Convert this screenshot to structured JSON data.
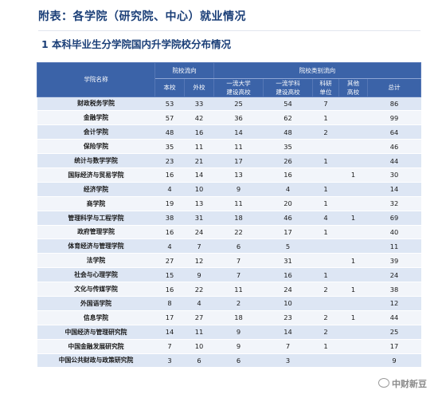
{
  "title": "附表：各学院（研究院、中心）就业情况",
  "section_title": "1  本科毕业生分学院国内升学院校分布情况",
  "table": {
    "header_name": "学院名称",
    "group1": "院校流向",
    "group2": "院校类别流向",
    "col_benxiao": "本校",
    "col_waixiao": "外校",
    "col_yiliu_daxue_1": "一流大学",
    "col_yiliu_daxue_2": "建设高校",
    "col_yiliu_xueke_1": "一流学科",
    "col_yiliu_xueke_2": "建设高校",
    "col_keyan_1": "科研",
    "col_keyan_2": "单位",
    "col_qita_1": "其他",
    "col_qita_2": "高校",
    "col_total": "总计",
    "rows": [
      {
        "name": "财政税务学院",
        "benxiao": "53",
        "waixiao": "33",
        "daxue": "25",
        "xueke": "54",
        "keyan": "7",
        "qita": "",
        "total": "86"
      },
      {
        "name": "金融学院",
        "benxiao": "57",
        "waixiao": "42",
        "daxue": "36",
        "xueke": "62",
        "keyan": "1",
        "qita": "",
        "total": "99"
      },
      {
        "name": "会计学院",
        "benxiao": "48",
        "waixiao": "16",
        "daxue": "14",
        "xueke": "48",
        "keyan": "2",
        "qita": "",
        "total": "64"
      },
      {
        "name": "保险学院",
        "benxiao": "35",
        "waixiao": "11",
        "daxue": "11",
        "xueke": "35",
        "keyan": "",
        "qita": "",
        "total": "46"
      },
      {
        "name": "统计与数学学院",
        "benxiao": "23",
        "waixiao": "21",
        "daxue": "17",
        "xueke": "26",
        "keyan": "1",
        "qita": "",
        "total": "44"
      },
      {
        "name": "国际经济与贸易学院",
        "benxiao": "16",
        "waixiao": "14",
        "daxue": "13",
        "xueke": "16",
        "keyan": "",
        "qita": "1",
        "total": "30"
      },
      {
        "name": "经济学院",
        "benxiao": "4",
        "waixiao": "10",
        "daxue": "9",
        "xueke": "4",
        "keyan": "1",
        "qita": "",
        "total": "14"
      },
      {
        "name": "商学院",
        "benxiao": "19",
        "waixiao": "13",
        "daxue": "11",
        "xueke": "20",
        "keyan": "1",
        "qita": "",
        "total": "32"
      },
      {
        "name": "管理科学与工程学院",
        "benxiao": "38",
        "waixiao": "31",
        "daxue": "18",
        "xueke": "46",
        "keyan": "4",
        "qita": "1",
        "total": "69"
      },
      {
        "name": "政府管理学院",
        "benxiao": "16",
        "waixiao": "24",
        "daxue": "22",
        "xueke": "17",
        "keyan": "1",
        "qita": "",
        "total": "40"
      },
      {
        "name": "体育经济与管理学院",
        "benxiao": "4",
        "waixiao": "7",
        "daxue": "6",
        "xueke": "5",
        "keyan": "",
        "qita": "",
        "total": "11"
      },
      {
        "name": "法学院",
        "benxiao": "27",
        "waixiao": "12",
        "daxue": "7",
        "xueke": "31",
        "keyan": "",
        "qita": "1",
        "total": "39"
      },
      {
        "name": "社会与心理学院",
        "benxiao": "15",
        "waixiao": "9",
        "daxue": "7",
        "xueke": "16",
        "keyan": "1",
        "qita": "",
        "total": "24"
      },
      {
        "name": "文化与传媒学院",
        "benxiao": "16",
        "waixiao": "22",
        "daxue": "11",
        "xueke": "24",
        "keyan": "2",
        "qita": "1",
        "total": "38"
      },
      {
        "name": "外国语学院",
        "benxiao": "8",
        "waixiao": "4",
        "daxue": "2",
        "xueke": "10",
        "keyan": "",
        "qita": "",
        "total": "12"
      },
      {
        "name": "信息学院",
        "benxiao": "17",
        "waixiao": "27",
        "daxue": "18",
        "xueke": "23",
        "keyan": "2",
        "qita": "1",
        "total": "44"
      },
      {
        "name": "中国经济与管理研究院",
        "benxiao": "14",
        "waixiao": "11",
        "daxue": "9",
        "xueke": "14",
        "keyan": "2",
        "qita": "",
        "total": "25"
      },
      {
        "name": "中国金融发展研究院",
        "benxiao": "7",
        "waixiao": "10",
        "daxue": "9",
        "xueke": "7",
        "keyan": "1",
        "qita": "",
        "total": "17"
      },
      {
        "name": "中国公共财政与政策研究院",
        "benxiao": "3",
        "waixiao": "6",
        "daxue": "6",
        "xueke": "3",
        "keyan": "",
        "qita": "",
        "total": "9"
      }
    ]
  },
  "watermark_text": "中财新豆",
  "watermark_icon": "chat-bubble-icon"
}
